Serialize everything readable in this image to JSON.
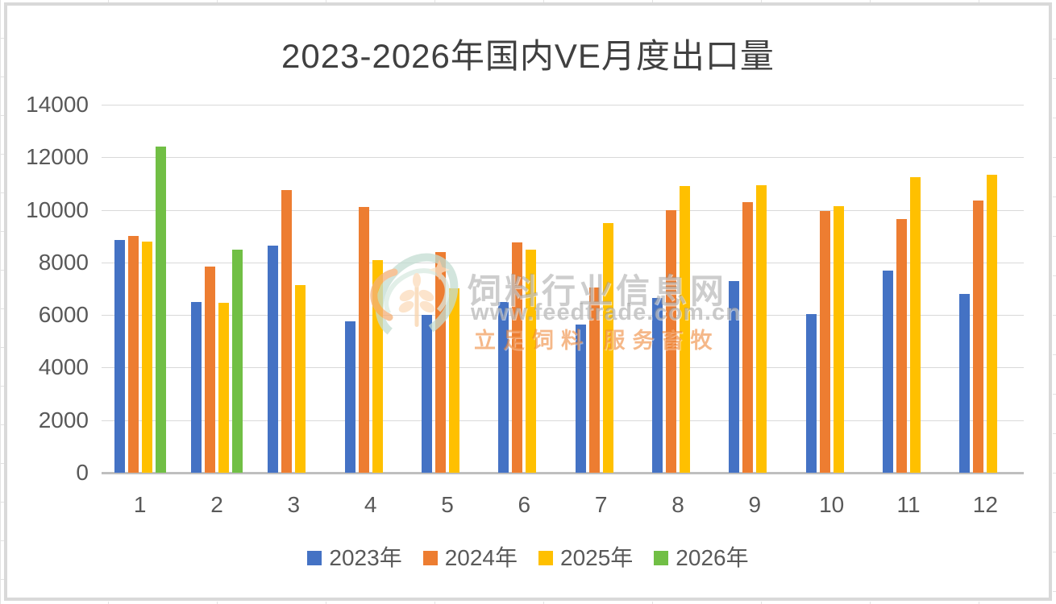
{
  "chart_data": {
    "type": "bar",
    "title": "2023-2026年国内VE月度出口量",
    "categories": [
      "1",
      "2",
      "3",
      "4",
      "5",
      "6",
      "7",
      "8",
      "9",
      "10",
      "11",
      "12"
    ],
    "series": [
      {
        "key": "2023",
        "name": "2023年",
        "color": "#4472C4",
        "values": [
          8850,
          6500,
          8650,
          5750,
          6000,
          6500,
          5650,
          6650,
          7300,
          6050,
          7700,
          6800
        ]
      },
      {
        "key": "2024",
        "name": "2024年",
        "color": "#ED7D31",
        "values": [
          9000,
          7850,
          10750,
          10100,
          8400,
          8750,
          7050,
          10000,
          10300,
          9950,
          9650,
          10350
        ]
      },
      {
        "key": "2025",
        "name": "2025年",
        "color": "#FFC000",
        "values": [
          8800,
          6450,
          7150,
          8100,
          7000,
          8500,
          9500,
          10900,
          10950,
          10150,
          11250,
          11350
        ]
      },
      {
        "key": "2026",
        "name": "2026年",
        "color": "#71BF45",
        "values": [
          12400,
          8500,
          null,
          null,
          null,
          null,
          null,
          null,
          null,
          null,
          null,
          null
        ]
      }
    ],
    "xlabel": "",
    "ylabel": "",
    "ylim": [
      0,
      14000
    ],
    "yticks": [
      0,
      2000,
      4000,
      6000,
      8000,
      10000,
      12000,
      14000
    ],
    "grid": true,
    "legend_position": "bottom"
  },
  "watermark": {
    "site_name": "饲料行业信息网",
    "url": "www.feedtrade.com.cn",
    "slogan": "立足饲料 服务畜牧"
  },
  "colors": {
    "gridline": "#D9D9D9",
    "axis_line": "#BFBFBF",
    "tick_label": "#595959",
    "title_text": "#404040",
    "frame_border": "#D9D9D9",
    "watermark_orange": "#EC7D28",
    "watermark_gray": "#919191"
  }
}
